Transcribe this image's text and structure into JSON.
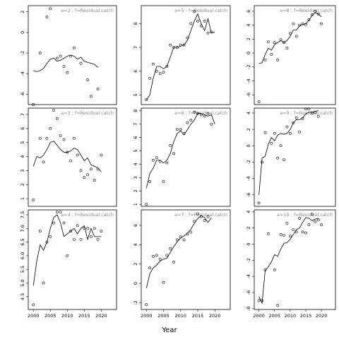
{
  "xlabel": "Year",
  "chart_data": [
    {
      "type": "scatter_line",
      "title": "a=2 ; f=Residual.catch",
      "x": [
        2000,
        2001,
        2002,
        2003,
        2004,
        2005,
        2006,
        2007,
        2008,
        2009,
        2010,
        2011,
        2012,
        2013,
        2014,
        2015,
        2016,
        2017,
        2018,
        2019,
        2020
      ],
      "xlim": [
        1998.5,
        2024.5
      ],
      "ylim": [
        -7,
        2.6
      ],
      "yticks": [
        -6,
        -4,
        -2,
        0,
        2
      ],
      "series": [
        {
          "mode": "points",
          "color": "#000000",
          "values": [
            -7,
            null,
            -2,
            null,
            1.5,
            2.3,
            null,
            -2.5,
            -2.3,
            -3.3,
            -3.9,
            -2.3,
            -1.5,
            null,
            -3,
            null,
            -4.6,
            -6.2,
            null,
            -5.5,
            null
          ]
        },
        {
          "mode": "line",
          "color": "#000000",
          "values": [
            -3.7,
            -3.8,
            -3.7,
            -3.5,
            -3.0,
            -2.6,
            -2.5,
            -2.8,
            -2.7,
            -2.5,
            -2.3,
            -2.2,
            -2.3,
            -2.6,
            -2.4,
            -2.8,
            -2.9,
            -3.0,
            -3.1,
            -3.4,
            null
          ]
        }
      ]
    },
    {
      "type": "scatter_line",
      "title": "a=5 ; f=Residual.catch",
      "x": [
        2000,
        2001,
        2002,
        2003,
        2004,
        2005,
        2006,
        2007,
        2008,
        2009,
        2010,
        2011,
        2012,
        2013,
        2014,
        2015,
        2016,
        2017,
        2018,
        2019,
        2020
      ],
      "xlim": [
        1998.5,
        2024.5
      ],
      "ylim": [
        4.6,
        8.75
      ],
      "yticks": [
        5,
        6,
        7,
        8
      ],
      "series": [
        {
          "mode": "points",
          "color": "#000000",
          "values": [
            4.8,
            5.7,
            6.3,
            6.0,
            5.9,
            5.95,
            6.2,
            7.1,
            7.0,
            7.0,
            7.1,
            7.1,
            7.4,
            8.0,
            8.5,
            8.1,
            7.9,
            8.1,
            7.6,
            7.65,
            null
          ]
        },
        {
          "mode": "line",
          "color": "#000000",
          "values": [
            4.8,
            5.0,
            5.7,
            6.2,
            6.2,
            6.1,
            6.2,
            6.6,
            7.0,
            7.0,
            7.05,
            7.1,
            7.3,
            7.7,
            8.1,
            8.4,
            8.0,
            7.7,
            8.2,
            7.6,
            7.65
          ]
        }
      ]
    },
    {
      "type": "scatter_line",
      "title": "a=8 ; f=Residual.catch",
      "x": [
        2000,
        2001,
        2002,
        2003,
        2004,
        2005,
        2006,
        2007,
        2008,
        2009,
        2010,
        2011,
        2012,
        2013,
        2014,
        2015,
        2016,
        2017,
        2018,
        2019,
        2020
      ],
      "xlim": [
        1998.5,
        2024.5
      ],
      "ylim": [
        -7.4,
        6.8
      ],
      "yticks": [
        -6,
        -4,
        -2,
        0,
        2,
        4,
        6
      ],
      "series": [
        {
          "mode": "points",
          "color": "#000000",
          "values": [
            -7,
            null,
            -1,
            1.6,
            -0.2,
            1.5,
            -1,
            1.9,
            1.5,
            0.7,
            2.8,
            4.2,
            2.4,
            4.0,
            4.2,
            4.1,
            4.8,
            5.5,
            6.0,
            5.6,
            4.2
          ]
        },
        {
          "mode": "line",
          "color": "#000000",
          "values": [
            -1.5,
            -1.4,
            -0.2,
            0.7,
            0.4,
            1.2,
            1.5,
            1.8,
            1.5,
            1.8,
            2.4,
            3.3,
            3.3,
            3.9,
            4.1,
            4.2,
            4.7,
            5.4,
            5.8,
            5.6,
            5.2
          ]
        }
      ]
    },
    {
      "type": "scatter_line",
      "title": "a=3 ; f=Residual.catch",
      "x": [
        2000,
        2001,
        2002,
        2003,
        2004,
        2005,
        2006,
        2007,
        2008,
        2009,
        2010,
        2011,
        2012,
        2013,
        2014,
        2015,
        2016,
        2017,
        2018,
        2019,
        2020
      ],
      "xlim": [
        1998.5,
        2024.5
      ],
      "ylim": [
        0.45,
        7.45
      ],
      "yticks": [
        1,
        2,
        3,
        4,
        5,
        6,
        7
      ],
      "series": [
        {
          "mode": "points",
          "color": "#000000",
          "values": [
            0.9,
            null,
            5.3,
            3.6,
            5.3,
            6,
            7.3,
            6.7,
            5.5,
            5.2,
            4.3,
            3.7,
            5.3,
            4.1,
            3,
            2.5,
            2.7,
            3.1,
            2.3,
            3.1,
            4.1
          ]
        },
        {
          "mode": "line",
          "color": "#000000",
          "values": [
            3.3,
            4.0,
            3.9,
            4.1,
            4.5,
            5.0,
            5.1,
            4.8,
            4.5,
            4.3,
            4.3,
            4.4,
            4.6,
            4.5,
            4.1,
            3.7,
            3.9,
            3.4,
            3.3,
            3.2,
            2.9
          ]
        }
      ]
    },
    {
      "type": "scatter_line",
      "title": "a=6 ; f=Residual.catch",
      "x": [
        2000,
        2001,
        2002,
        2003,
        2004,
        2005,
        2006,
        2007,
        2008,
        2009,
        2010,
        2011,
        2012,
        2013,
        2014,
        2015,
        2016,
        2017,
        2018,
        2019,
        2020
      ],
      "xlim": [
        1998.5,
        2024.5
      ],
      "ylim": [
        0.85,
        8.2
      ],
      "yticks": [
        1,
        2,
        3,
        4,
        5,
        6,
        7,
        8
      ],
      "series": [
        {
          "mode": "points",
          "color": "#000000",
          "values": [
            1,
            2.7,
            4.3,
            4.5,
            4.2,
            2.7,
            4.1,
            5.4,
            4.8,
            6.6,
            6.6,
            6.3,
            7.1,
            7.3,
            7.9,
            7.8,
            7.7,
            7.6,
            7.8,
            7.0,
            null
          ]
        },
        {
          "mode": "line",
          "color": "#000000",
          "values": [
            2.2,
            3.3,
            3.7,
            4.3,
            4.3,
            4.1,
            4.3,
            4.8,
            5.7,
            6.3,
            6.5,
            6.2,
            6.6,
            7.0,
            7.3,
            7.8,
            7.8,
            7.7,
            7.6,
            7.7,
            7.0
          ]
        }
      ]
    },
    {
      "type": "scatter_line",
      "title": "a=9 ; f=Residual.catch",
      "x": [
        2000,
        2001,
        2002,
        2003,
        2004,
        2005,
        2006,
        2007,
        2008,
        2009,
        2010,
        2011,
        2012,
        2013,
        2014,
        2015,
        2016,
        2017,
        2018,
        2019,
        2020
      ],
      "xlim": [
        1998.5,
        2024.5
      ],
      "ylim": [
        -7.4,
        4.6
      ],
      "yticks": [
        -6,
        -4,
        -2,
        0,
        2,
        4
      ],
      "series": [
        {
          "mode": "points",
          "color": "#000000",
          "values": [
            -7,
            -2,
            1.6,
            null,
            0.3,
            1.5,
            -1.5,
            0,
            -1.7,
            2.3,
            1.5,
            2.8,
            3.4,
            1.7,
            3.3,
            4.5,
            4.5,
            4.0,
            4.1,
            3.6,
            null
          ]
        },
        {
          "mode": "line",
          "color": "#000000",
          "values": [
            -6,
            -1.5,
            -1.3,
            0.2,
            1,
            0.6,
            1.3,
            1.5,
            1.4,
            1.5,
            2,
            2.8,
            3.2,
            3.2,
            3.4,
            3.9,
            4.1,
            4.1,
            4.2,
            4.3,
            null
          ]
        }
      ]
    },
    {
      "type": "scatter_line",
      "title": "a=4 ; f=Residual.catch",
      "x": [
        2000,
        2001,
        2002,
        2003,
        2004,
        2005,
        2006,
        2007,
        2008,
        2009,
        2010,
        2011,
        2012,
        2013,
        2014,
        2015,
        2016,
        2017,
        2018,
        2019,
        2020
      ],
      "xlim": [
        1998.5,
        2024.5
      ],
      "ylim": [
        4.03,
        7.68
      ],
      "yticks": [
        4.5,
        {
          "value": 5,
          "label": "5.0"
        },
        5.5,
        {
          "value": 6,
          "label": "6.0"
        },
        6.5,
        {
          "value": 7,
          "label": "7.0"
        },
        7.5
      ],
      "xticks": [
        2000,
        2005,
        2010,
        2015,
        2020
      ],
      "series": [
        {
          "mode": "points",
          "color": "#000000",
          "values": [
            4.2,
            null,
            6.9,
            5.0,
            6.5,
            6.7,
            7.2,
            7.6,
            7.6,
            7.2,
            6.0,
            6.9,
            6.6,
            7.1,
            6.6,
            7.0,
            7.0,
            6.7,
            7.0,
            6.6,
            6.9
          ]
        },
        {
          "mode": "line",
          "color": "#000000",
          "values": [
            4.9,
            5.8,
            6.4,
            6.2,
            6.5,
            7.0,
            7.4,
            7.5,
            7.2,
            6.7,
            6.8,
            6.9,
            7.0,
            6.8,
            7.0,
            7.1,
            6.6,
            7.0,
            6.7,
            6.7,
            6.7
          ]
        }
      ]
    },
    {
      "type": "scatter_line",
      "title": "a=7 ; f=Residual.catch",
      "x": [
        2000,
        2001,
        2002,
        2003,
        2004,
        2005,
        2006,
        2007,
        2008,
        2009,
        2010,
        2011,
        2012,
        2013,
        2014,
        2015,
        2016,
        2017,
        2018,
        2019,
        2020
      ],
      "xlim": [
        1998.5,
        2024.5
      ],
      "ylim": [
        -2.7,
        7.6
      ],
      "yticks": [
        -2,
        0,
        2,
        4,
        6
      ],
      "xticks": [
        2000,
        2005,
        2010,
        2015,
        2020
      ],
      "series": [
        {
          "mode": "points",
          "color": "#000000",
          "values": [
            -2.2,
            1.6,
            2.8,
            2.9,
            2.5,
            0.1,
            2.9,
            3.6,
            2.2,
            4.5,
            4.8,
            4.5,
            5.1,
            5.3,
            6.4,
            7.2,
            6.9,
            6.5,
            6.9,
            null,
            null
          ]
        },
        {
          "mode": "line",
          "color": "#000000",
          "values": [
            -0.5,
            1.0,
            1.6,
            1.9,
            2.3,
            2.5,
            2.6,
            3.2,
            3.8,
            4.3,
            4.7,
            4.9,
            5.2,
            5.6,
            6.2,
            6.7,
            7.0,
            6.8,
            6.3,
            6.8,
            null
          ]
        }
      ]
    },
    {
      "type": "scatter_line",
      "title": "a=10 ; f=Residual.catch",
      "x": [
        2000,
        2001,
        2002,
        2003,
        2004,
        2005,
        2006,
        2007,
        2008,
        2009,
        2010,
        2011,
        2012,
        2013,
        2014,
        2015,
        2016,
        2017,
        2018,
        2019,
        2020
      ],
      "xlim": [
        1998.5,
        2024.5
      ],
      "ylim": [
        -8.1,
        4.25
      ],
      "yticks": [
        -8,
        -6,
        -4,
        -2,
        0,
        2,
        4
      ],
      "xticks": [
        2000,
        2005,
        2010,
        2015,
        2020
      ],
      "series": [
        {
          "mode": "points",
          "color": "#000000",
          "values": [
            -7,
            -7,
            -3.2,
            1.3,
            null,
            -3.2,
            -7.6,
            1.2,
            1.1,
            2.6,
            1.0,
            1.8,
            1.5,
            3.2,
            1.5,
            1.4,
            2.4,
            3.7,
            2.8,
            3.0,
            2.4
          ]
        },
        {
          "mode": "line",
          "color": "#000000",
          "values": [
            -6.5,
            -7.3,
            -3.3,
            -2.8,
            -2.2,
            -1.3,
            -1.5,
            -0.6,
            0.1,
            0.2,
            0.6,
            1.2,
            1.8,
            2.0,
            2.7,
            3.3,
            3.2,
            2.9,
            3.1,
            3.2,
            null
          ]
        }
      ]
    }
  ]
}
